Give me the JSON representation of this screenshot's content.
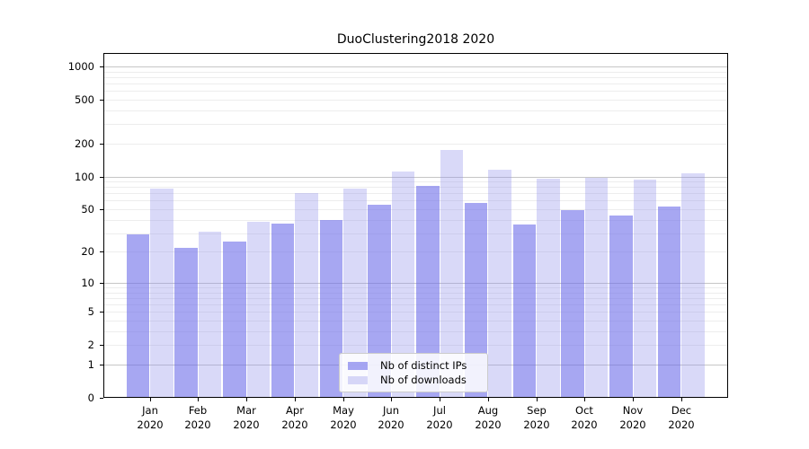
{
  "title": "DuoClustering2018 2020",
  "chart_data": {
    "type": "bar",
    "title": "DuoClustering2018 2020",
    "categories": [
      "Jan 2020",
      "Feb 2020",
      "Mar 2020",
      "Apr 2020",
      "May 2020",
      "Jun 2020",
      "Jul 2020",
      "Aug 2020",
      "Sep 2020",
      "Oct 2020",
      "Nov 2020",
      "Dec 2020"
    ],
    "series": [
      {
        "name": "Nb of distinct IPs",
        "color": "#6c6ce9",
        "alpha": 0.6,
        "apparent_color": "#a6a6f2",
        "values": [
          29,
          22,
          25,
          37,
          40,
          55,
          82,
          57,
          36,
          49,
          44,
          53
        ]
      },
      {
        "name": "Nb of downloads",
        "color": "#9292eb",
        "alpha": 0.35,
        "apparent_color": "#d9d9f8",
        "values": [
          78,
          31,
          38,
          70,
          77,
          110,
          176,
          115,
          95,
          98,
          93,
          106
        ]
      }
    ],
    "xlabel": "",
    "ylabel": "",
    "yscale": "symlog-ln(1+v)",
    "ylim": [
      0,
      1330
    ],
    "yticks": [
      0,
      1,
      2,
      5,
      10,
      20,
      50,
      100,
      200,
      500,
      1000
    ],
    "grid": true,
    "gridlines": {
      "major": [
        1,
        10,
        100,
        1000
      ],
      "minor": [
        2,
        3,
        4,
        5,
        6,
        7,
        8,
        9,
        20,
        30,
        40,
        50,
        60,
        70,
        80,
        90,
        200,
        300,
        400,
        500,
        600,
        700,
        800,
        900
      ],
      "major_color": "#c6c6c6",
      "minor_color": "#ededed"
    },
    "legend_position": "lower center",
    "axis_color": "#000000",
    "background_color": "#ffffff"
  }
}
